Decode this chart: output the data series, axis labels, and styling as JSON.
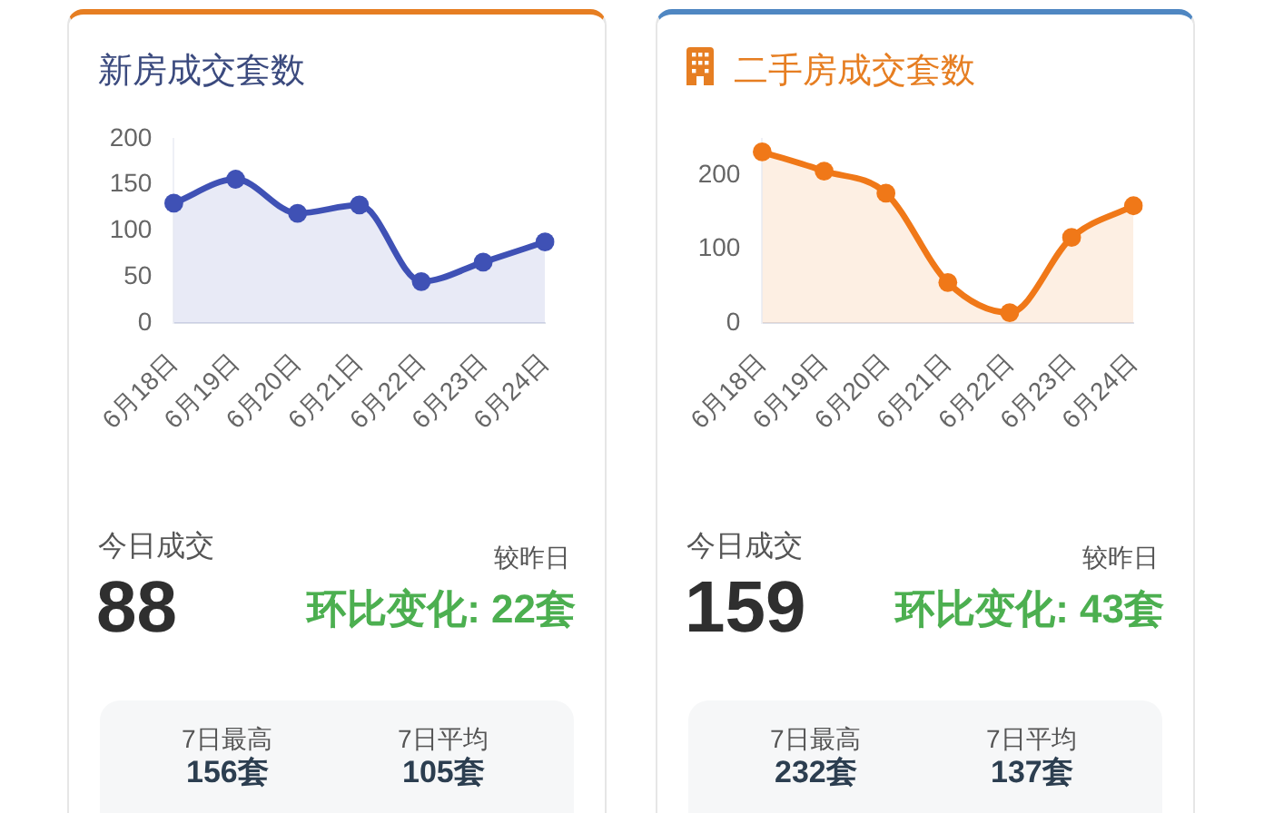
{
  "chart_data": [
    {
      "type": "area",
      "title": "新房成交套数",
      "categories": [
        "6月18日",
        "6月19日",
        "6月20日",
        "6月21日",
        "6月22日",
        "6月23日",
        "6月24日"
      ],
      "series": [
        {
          "color": "#3f51b5",
          "values": [
            130,
            156,
            119,
            128,
            45,
            66,
            88
          ]
        }
      ],
      "ylim": [
        0,
        200
      ],
      "yticks": [
        0,
        50,
        100,
        150,
        200
      ],
      "marker": "circle",
      "annotations": [
        "今日成交",
        "88",
        "较昨日",
        "环比变化: 22套",
        "7日最高",
        "156套",
        "7日平均",
        "105套"
      ]
    },
    {
      "type": "area",
      "title": "二手房成交套数",
      "categories": [
        "6月18日",
        "6月19日",
        "6月20日",
        "6月21日",
        "6月22日",
        "6月23日",
        "6月24日"
      ],
      "series": [
        {
          "color": "#f07818",
          "values": [
            232,
            206,
            176,
            55,
            14,
            116,
            159
          ]
        }
      ],
      "ylim": [
        0,
        250
      ],
      "yticks": [
        0,
        100,
        200
      ],
      "marker": "circle",
      "annotations": [
        "今日成交",
        "159",
        "较昨日",
        "环比变化: 43套",
        "7日最高",
        "232套",
        "7日平均",
        "137套"
      ]
    }
  ]
}
